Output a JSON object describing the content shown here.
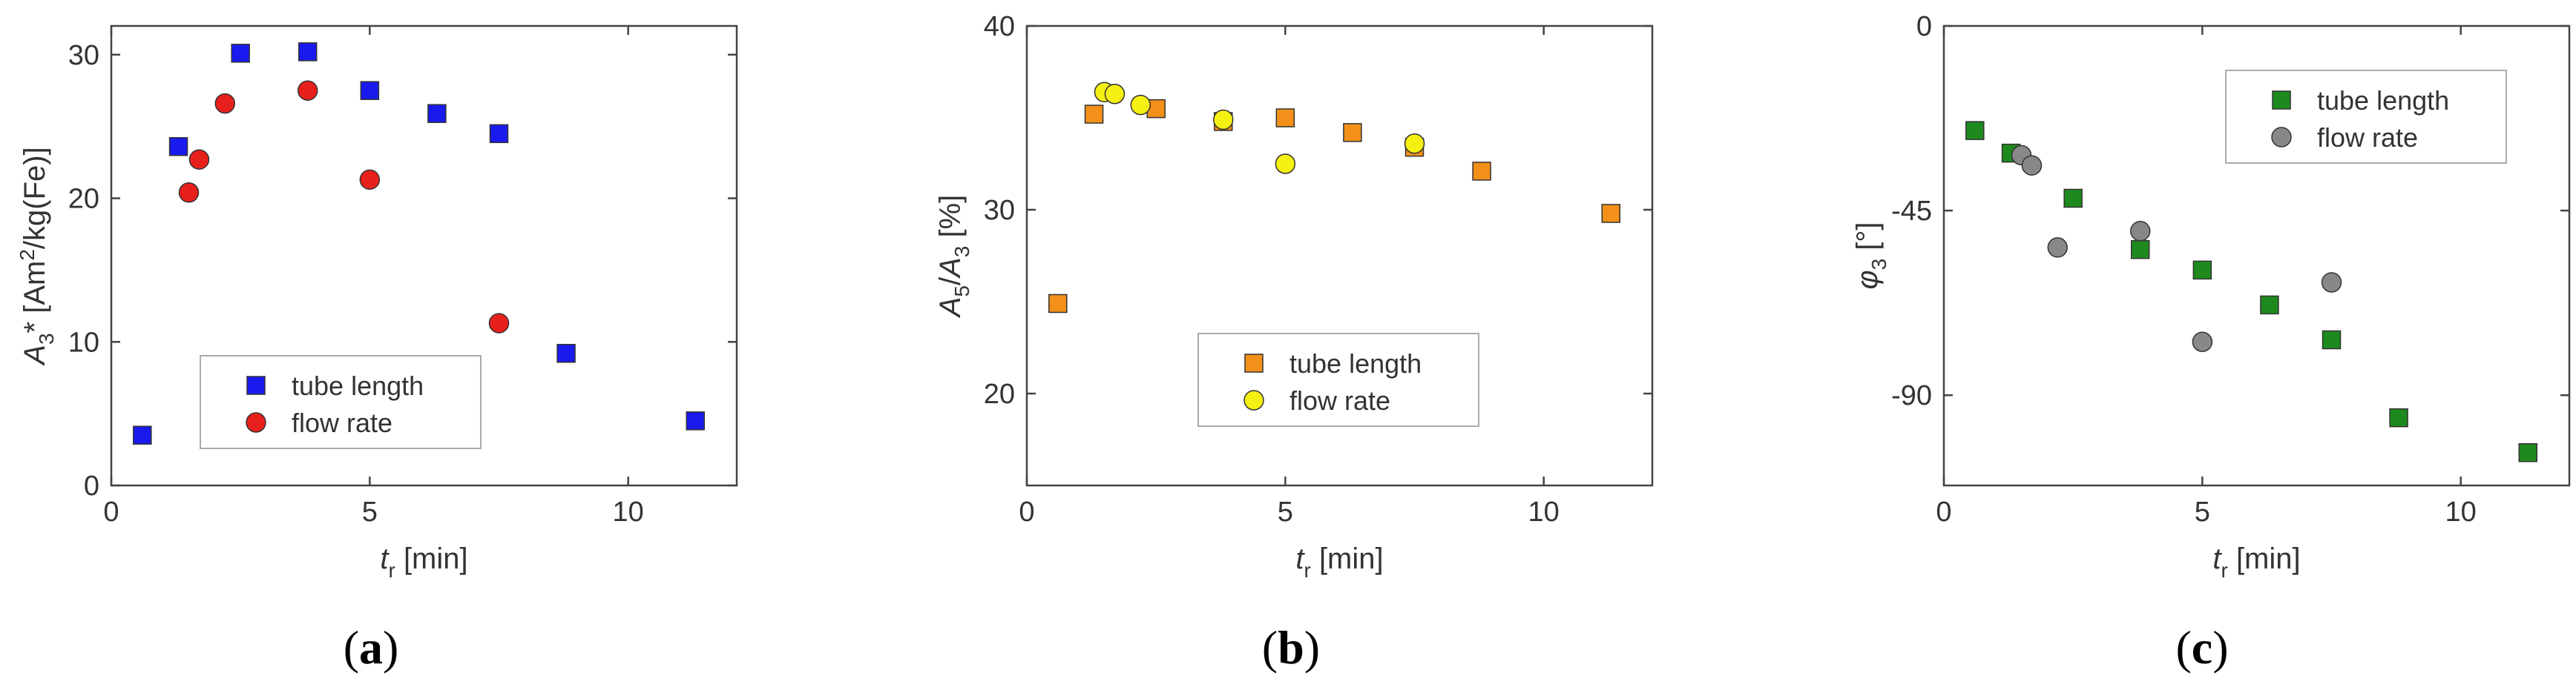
{
  "chart_data": [
    {
      "id": "a",
      "type": "scatter",
      "caption": "(a)",
      "caption_letter": "a",
      "ylabel_main": "A",
      "ylabel_sub": "3",
      "ylabel_rest": "* [Am",
      "ylabel_sup": "2",
      "ylabel_tail": "/kg(Fe)]",
      "xlabel_main": "t",
      "xlabel_sub": "r",
      "xlabel_rest": " [min]",
      "xlim": [
        0,
        12.1
      ],
      "ylim": [
        0,
        32
      ],
      "xticks": [
        0,
        5,
        10
      ],
      "yticks": [
        0,
        10,
        20,
        30
      ],
      "xtick_labels": [
        "0",
        "5",
        "10"
      ],
      "ytick_labels": [
        "0",
        "10",
        "20",
        "30"
      ],
      "legend_position": "bottom-center",
      "series": [
        {
          "name": "tube length",
          "marker": "square",
          "color": "#1a1aee",
          "x": [
            0.6,
            1.3,
            2.5,
            3.8,
            5.0,
            6.3,
            7.5,
            8.8,
            11.3
          ],
          "y": [
            3.5,
            23.6,
            30.1,
            30.2,
            27.5,
            25.9,
            24.5,
            9.2,
            4.5
          ]
        },
        {
          "name": "flow rate",
          "marker": "circle",
          "color": "#e8201c",
          "x": [
            1.5,
            1.7,
            2.2,
            3.8,
            5.0,
            7.5
          ],
          "y": [
            20.4,
            22.7,
            26.6,
            27.5,
            21.3,
            11.3
          ]
        }
      ]
    },
    {
      "id": "b",
      "type": "scatter",
      "caption": "(b)",
      "caption_letter": "b",
      "ylabel_main": "A",
      "ylabel_sub": "5",
      "ylabel_rest": "/",
      "ylabel_main2": "A",
      "ylabel_sub2": "3",
      "ylabel_tail": " [%]",
      "xlabel_main": "t",
      "xlabel_sub": "r",
      "xlabel_rest": " [min]",
      "xlim": [
        0,
        12.1
      ],
      "ylim": [
        15,
        40
      ],
      "xticks": [
        0,
        5,
        10
      ],
      "yticks": [
        20,
        30,
        40
      ],
      "xtick_labels": [
        "0",
        "5",
        "10"
      ],
      "ytick_labels": [
        "20",
        "30",
        "40"
      ],
      "legend_position": "bottom-center",
      "series": [
        {
          "name": "tube length",
          "marker": "square",
          "color": "#f39019",
          "x": [
            0.6,
            1.3,
            2.5,
            3.8,
            5.0,
            6.3,
            7.5,
            8.8,
            11.3
          ],
          "y": [
            24.9,
            35.2,
            35.5,
            34.8,
            35.0,
            34.2,
            33.4,
            32.1,
            29.8
          ]
        },
        {
          "name": "flow rate",
          "marker": "circle",
          "color": "#f5f012",
          "x": [
            1.5,
            1.7,
            2.2,
            3.8,
            5.0,
            7.5
          ],
          "y": [
            36.4,
            36.3,
            35.7,
            34.9,
            32.5,
            33.6
          ]
        }
      ]
    },
    {
      "id": "c",
      "type": "scatter",
      "caption": "(c)",
      "caption_letter": "c",
      "ylabel_main": "φ",
      "ylabel_sub": "3",
      "ylabel_tail": " [°]",
      "xlabel_main": "t",
      "xlabel_sub": "r",
      "xlabel_rest": " [min]",
      "xlim": [
        0,
        12.1
      ],
      "ylim": [
        -112,
        0
      ],
      "xticks": [
        0,
        5,
        10
      ],
      "yticks": [
        0,
        -45,
        -90
      ],
      "xtick_labels": [
        "0",
        "5",
        "10"
      ],
      "ytick_labels": [
        "0",
        "-45",
        "-90"
      ],
      "legend_position": "top-right",
      "series": [
        {
          "name": "tube length",
          "marker": "square",
          "color": "#1e8a1e",
          "x": [
            0.6,
            1.3,
            2.5,
            3.8,
            5.0,
            6.3,
            7.5,
            8.8,
            11.3
          ],
          "y": [
            -25.5,
            -31.0,
            -42.0,
            -54.5,
            -59.5,
            -68.0,
            -76.5,
            -95.5,
            -104.0
          ]
        },
        {
          "name": "flow rate",
          "marker": "circle",
          "color": "#888888",
          "x": [
            1.5,
            1.7,
            2.2,
            3.8,
            5.0,
            7.5
          ],
          "y": [
            -31.5,
            -34.0,
            -54.0,
            -50.0,
            -77.0,
            -62.5
          ]
        }
      ]
    }
  ]
}
